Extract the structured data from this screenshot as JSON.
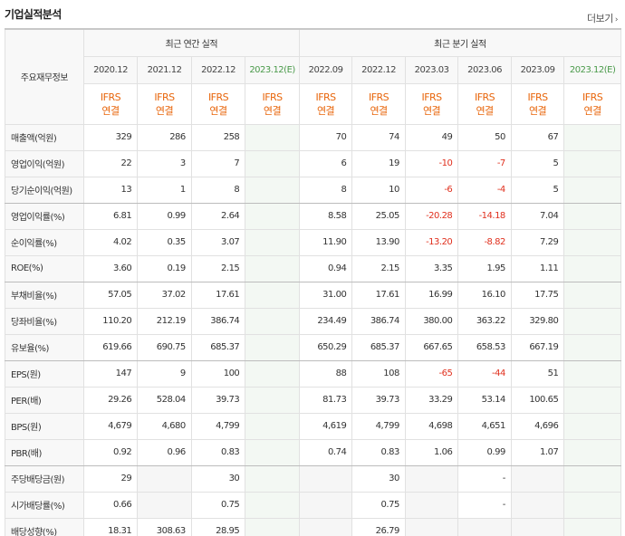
{
  "header": {
    "title": "기업실적분석",
    "more_label": "더보기",
    "more_icon": "chevron-right"
  },
  "corner_label": "주요재무정보",
  "groups": {
    "annual": "최근 연간 실적",
    "quarterly": "최근 분기 실적"
  },
  "periods": [
    "2020.12",
    "2021.12",
    "2022.12",
    "2023.12(E)",
    "2022.09",
    "2022.12",
    "2023.03",
    "2023.06",
    "2023.09",
    "2023.12(E)"
  ],
  "basis": [
    [
      "IFRS",
      "연결"
    ],
    [
      "IFRS",
      "연결"
    ],
    [
      "IFRS",
      "연결"
    ],
    [
      "IFRS",
      "연결"
    ],
    [
      "IFRS",
      "연결"
    ],
    [
      "IFRS",
      "연결"
    ],
    [
      "IFRS",
      "연결"
    ],
    [
      "IFRS",
      "연결"
    ],
    [
      "IFRS",
      "연결"
    ],
    [
      "IFRS",
      "연결"
    ]
  ],
  "rows": [
    {
      "label": "매출액(억원)",
      "values": [
        "329",
        "286",
        "258",
        "",
        "70",
        "74",
        "49",
        "50",
        "67",
        ""
      ]
    },
    {
      "label": "영업이익(억원)",
      "values": [
        "22",
        "3",
        "7",
        "",
        "6",
        "19",
        "-10",
        "-7",
        "5",
        ""
      ]
    },
    {
      "label": "당기순이익(억원)",
      "values": [
        "13",
        "1",
        "8",
        "",
        "8",
        "10",
        "-6",
        "-4",
        "5",
        ""
      ]
    },
    {
      "label": "영업이익률(%)",
      "values": [
        "6.81",
        "0.99",
        "2.64",
        "",
        "8.58",
        "25.05",
        "-20.28",
        "-14.18",
        "7.04",
        ""
      ]
    },
    {
      "label": "순이익률(%)",
      "values": [
        "4.02",
        "0.35",
        "3.07",
        "",
        "11.90",
        "13.90",
        "-13.20",
        "-8.82",
        "7.29",
        ""
      ]
    },
    {
      "label": "ROE(%)",
      "values": [
        "3.60",
        "0.19",
        "2.15",
        "",
        "0.94",
        "2.15",
        "3.35",
        "1.95",
        "1.11",
        ""
      ]
    },
    {
      "label": "부채비율(%)",
      "values": [
        "57.05",
        "37.02",
        "17.61",
        "",
        "31.00",
        "17.61",
        "16.99",
        "16.10",
        "17.75",
        ""
      ]
    },
    {
      "label": "당좌비율(%)",
      "values": [
        "110.20",
        "212.19",
        "386.74",
        "",
        "234.49",
        "386.74",
        "380.00",
        "363.22",
        "329.80",
        ""
      ]
    },
    {
      "label": "유보율(%)",
      "values": [
        "619.66",
        "690.75",
        "685.37",
        "",
        "650.29",
        "685.37",
        "667.65",
        "658.53",
        "667.19",
        ""
      ]
    },
    {
      "label": "EPS(원)",
      "values": [
        "147",
        "9",
        "100",
        "",
        "88",
        "108",
        "-65",
        "-44",
        "51",
        ""
      ]
    },
    {
      "label": "PER(배)",
      "values": [
        "29.26",
        "528.04",
        "39.73",
        "",
        "81.73",
        "39.73",
        "33.29",
        "53.14",
        "100.65",
        ""
      ]
    },
    {
      "label": "BPS(원)",
      "values": [
        "4,679",
        "4,680",
        "4,799",
        "",
        "4,619",
        "4,799",
        "4,698",
        "4,651",
        "4,696",
        ""
      ]
    },
    {
      "label": "PBR(배)",
      "values": [
        "0.92",
        "0.96",
        "0.83",
        "",
        "0.74",
        "0.83",
        "1.06",
        "0.99",
        "1.07",
        ""
      ]
    },
    {
      "label": "주당배당금(원)",
      "values": [
        "29",
        "",
        "30",
        "",
        "",
        "30",
        "",
        "-",
        "",
        ""
      ]
    },
    {
      "label": "시가배당률(%)",
      "values": [
        "0.66",
        "",
        "0.75",
        "",
        "",
        "0.75",
        "",
        "-",
        "",
        ""
      ]
    },
    {
      "label": "배당성향(%)",
      "values": [
        "18.31",
        "308.63",
        "28.95",
        "",
        "",
        "26.79",
        "",
        "",
        "",
        ""
      ]
    }
  ],
  "colors": {
    "basis_text": "#e8650b",
    "estimate_bg": "#f3f8f3",
    "estimate_text": "#4a9a4a",
    "negative": "#e0301e"
  }
}
